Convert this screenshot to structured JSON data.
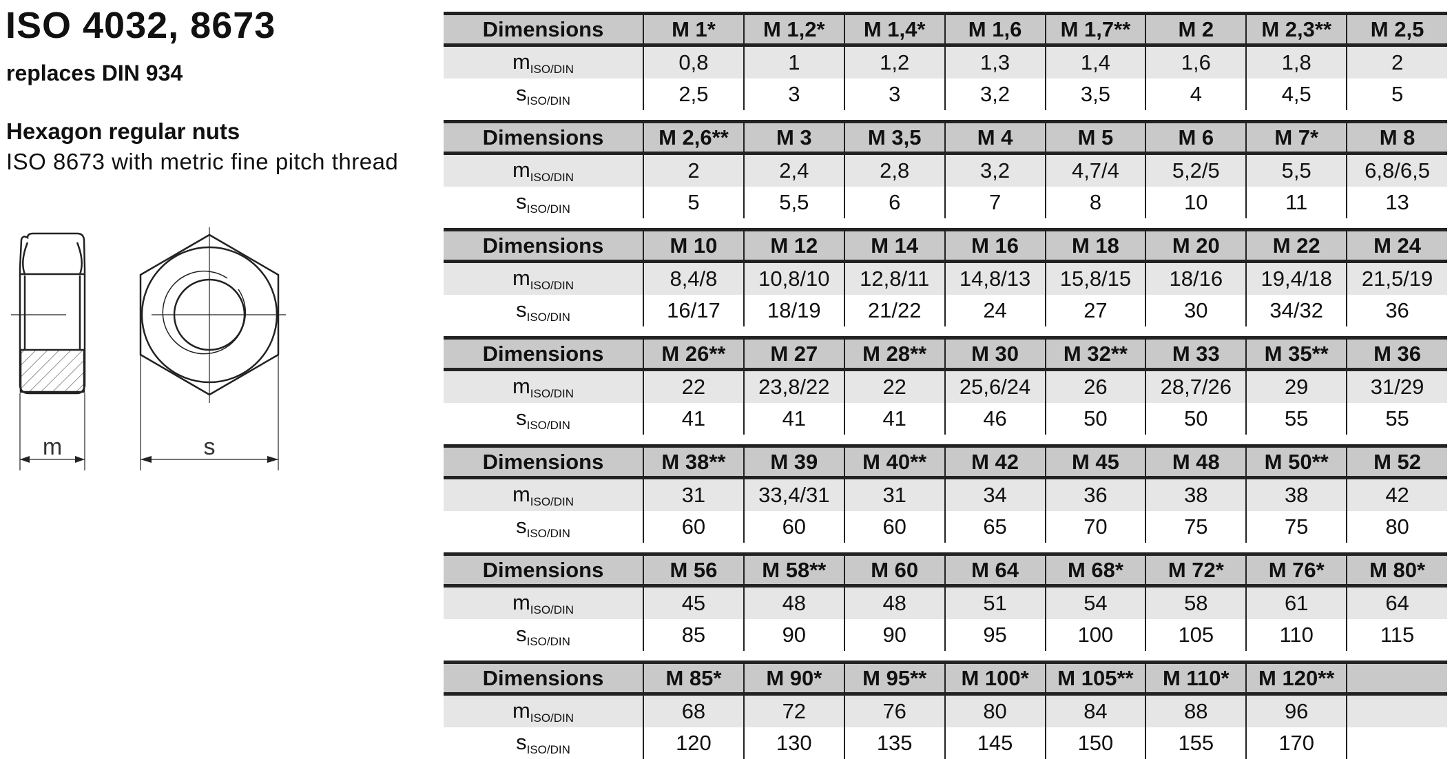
{
  "title": "ISO 4032, 8673",
  "subtitle": "replaces DIN 934",
  "heading": "Hexagon regular nuts",
  "description": "ISO 8673 with metric fine pitch thread",
  "drawing": {
    "label_m": "m",
    "label_s": "s"
  },
  "table": {
    "header_label": "Dimensions",
    "m_label": "m",
    "s_label": "s",
    "subscript": "ISO/DIN",
    "blocks": [
      {
        "sizes": [
          "M 1*",
          "M 1,2*",
          "M 1,4*",
          "M 1,6",
          "M 1,7**",
          "M 2",
          "M 2,3**",
          "M 2,5"
        ],
        "m": [
          "0,8",
          "1",
          "1,2",
          "1,3",
          "1,4",
          "1,6",
          "1,8",
          "2"
        ],
        "s": [
          "2,5",
          "3",
          "3",
          "3,2",
          "3,5",
          "4",
          "4,5",
          "5"
        ]
      },
      {
        "sizes": [
          "M 2,6**",
          "M 3",
          "M 3,5",
          "M 4",
          "M 5",
          "M 6",
          "M 7*",
          "M 8"
        ],
        "m": [
          "2",
          "2,4",
          "2,8",
          "3,2",
          "4,7/4",
          "5,2/5",
          "5,5",
          "6,8/6,5"
        ],
        "s": [
          "5",
          "5,5",
          "6",
          "7",
          "8",
          "10",
          "11",
          "13"
        ]
      },
      {
        "sizes": [
          "M 10",
          "M 12",
          "M 14",
          "M 16",
          "M 18",
          "M 20",
          "M 22",
          "M 24"
        ],
        "m": [
          "8,4/8",
          "10,8/10",
          "12,8/11",
          "14,8/13",
          "15,8/15",
          "18/16",
          "19,4/18",
          "21,5/19"
        ],
        "s": [
          "16/17",
          "18/19",
          "21/22",
          "24",
          "27",
          "30",
          "34/32",
          "36"
        ]
      },
      {
        "sizes": [
          "M 26**",
          "M 27",
          "M 28**",
          "M 30",
          "M 32**",
          "M 33",
          "M 35**",
          "M 36"
        ],
        "m": [
          "22",
          "23,8/22",
          "22",
          "25,6/24",
          "26",
          "28,7/26",
          "29",
          "31/29"
        ],
        "s": [
          "41",
          "41",
          "41",
          "46",
          "50",
          "50",
          "55",
          "55"
        ]
      },
      {
        "sizes": [
          "M 38**",
          "M 39",
          "M 40**",
          "M 42",
          "M 45",
          "M 48",
          "M 50**",
          "M 52"
        ],
        "m": [
          "31",
          "33,4/31",
          "31",
          "34",
          "36",
          "38",
          "38",
          "42"
        ],
        "s": [
          "60",
          "60",
          "60",
          "65",
          "70",
          "75",
          "75",
          "80"
        ]
      },
      {
        "sizes": [
          "M 56",
          "M 58**",
          "M 60",
          "M 64",
          "M 68*",
          "M 72*",
          "M 76*",
          "M 80*"
        ],
        "m": [
          "45",
          "48",
          "48",
          "51",
          "54",
          "58",
          "61",
          "64"
        ],
        "s": [
          "85",
          "90",
          "90",
          "95",
          "100",
          "105",
          "110",
          "115"
        ]
      },
      {
        "sizes": [
          "M 85*",
          "M 90*",
          "M 95**",
          "M 100*",
          "M 105**",
          "M 110*",
          "M 120**",
          ""
        ],
        "m": [
          "68",
          "72",
          "76",
          "80",
          "84",
          "88",
          "96",
          ""
        ],
        "s": [
          "120",
          "130",
          "135",
          "145",
          "150",
          "155",
          "170",
          ""
        ]
      }
    ]
  }
}
